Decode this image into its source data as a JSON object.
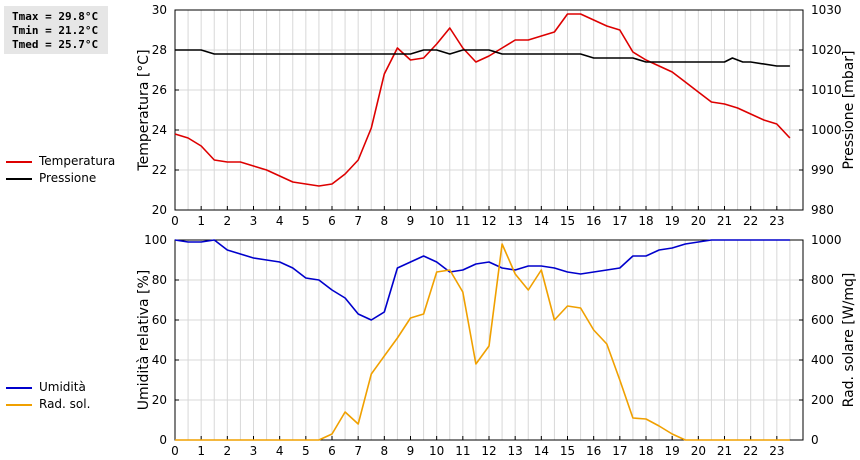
{
  "stats": {
    "tmax": "Tmax = 29.8°C",
    "tmin": "Tmin = 21.2°C",
    "tmed": "Tmed = 25.7°C"
  },
  "chart_data": [
    {
      "type": "line",
      "x_ticks": [
        "0",
        "1",
        "2",
        "3",
        "4",
        "5",
        "6",
        "7",
        "8",
        "9",
        "10",
        "11",
        "12",
        "13",
        "14",
        "15",
        "16",
        "17",
        "18",
        "19",
        "20",
        "21",
        "22",
        "23"
      ],
      "xlim": [
        0,
        24
      ],
      "ylabel": "Temperatura [°C]",
      "ylim": [
        20,
        30
      ],
      "y_ticks": [
        20,
        22,
        24,
        26,
        28,
        30
      ],
      "y2label": "Pressione [mbar]",
      "y2lim": [
        980,
        1030
      ],
      "y2_ticks": [
        980,
        990,
        1000,
        1010,
        1020,
        1030
      ],
      "grid": true,
      "legend_position": "left",
      "series": [
        {
          "name": "Temperatura",
          "color": "#dd0000",
          "axis": "left",
          "x": [
            0,
            0.5,
            1,
            1.5,
            2,
            2.5,
            3,
            3.5,
            4,
            4.5,
            5,
            5.5,
            6,
            6.5,
            7,
            7.5,
            8,
            8.5,
            9,
            9.5,
            10,
            10.5,
            11,
            11.5,
            12,
            12.5,
            13,
            13.5,
            14,
            14.5,
            15,
            15.5,
            16,
            16.5,
            17,
            17.5,
            18,
            18.5,
            19,
            19.5,
            20,
            20.5,
            21,
            21.5,
            22,
            22.5,
            23,
            23.5
          ],
          "values": [
            23.8,
            23.6,
            23.2,
            22.5,
            22.4,
            22.4,
            22.2,
            22.0,
            21.7,
            21.4,
            21.3,
            21.2,
            21.3,
            21.8,
            22.5,
            24.1,
            26.8,
            28.1,
            27.5,
            27.6,
            28.3,
            29.1,
            28.1,
            27.4,
            27.7,
            28.1,
            28.5,
            28.5,
            28.7,
            28.9,
            29.8,
            29.8,
            29.5,
            29.2,
            29.0,
            27.9,
            27.5,
            27.2,
            26.9,
            26.4,
            25.9,
            25.4,
            25.3,
            25.1,
            24.8,
            24.5,
            24.3,
            23.6
          ]
        },
        {
          "name": "Pressione",
          "color": "#000000",
          "axis": "right",
          "x": [
            0,
            1,
            1.5,
            2,
            3,
            4,
            5,
            6,
            7,
            8,
            9,
            9.5,
            10,
            10.5,
            11,
            12,
            12.5,
            13,
            14,
            15,
            15.5,
            16,
            16.5,
            17,
            17.5,
            18,
            19,
            20,
            21,
            21.3,
            21.7,
            22,
            23,
            23.5
          ],
          "values": [
            1020,
            1020,
            1019,
            1019,
            1019,
            1019,
            1019,
            1019,
            1019,
            1019,
            1019,
            1020,
            1020,
            1019,
            1020,
            1020,
            1019,
            1019,
            1019,
            1019,
            1019,
            1018,
            1018,
            1018,
            1018,
            1017,
            1017,
            1017,
            1017,
            1018,
            1017,
            1017,
            1016,
            1016
          ]
        }
      ]
    },
    {
      "type": "line",
      "x_ticks": [
        "0",
        "1",
        "2",
        "3",
        "4",
        "5",
        "6",
        "7",
        "8",
        "9",
        "10",
        "11",
        "12",
        "13",
        "14",
        "15",
        "16",
        "17",
        "18",
        "19",
        "20",
        "21",
        "22",
        "23"
      ],
      "xlim": [
        0,
        24
      ],
      "ylabel": "Umidità relativa [%]",
      "ylim": [
        0,
        100
      ],
      "y_ticks": [
        0,
        20,
        40,
        60,
        80,
        100
      ],
      "y2label": "Rad. solare [W/mq]",
      "y2lim": [
        0,
        1000
      ],
      "y2_ticks": [
        0,
        200,
        400,
        600,
        800,
        1000
      ],
      "grid": true,
      "legend_position": "left",
      "series": [
        {
          "name": "Umidità",
          "color": "#0000cc",
          "axis": "left",
          "x": [
            0,
            0.5,
            1,
            1.5,
            2,
            2.5,
            3,
            3.5,
            4,
            4.5,
            5,
            5.5,
            6,
            6.5,
            7,
            7.5,
            8,
            8.5,
            9,
            9.5,
            10,
            10.5,
            11,
            11.5,
            12,
            12.5,
            13,
            13.5,
            14,
            14.5,
            15,
            15.5,
            16,
            16.5,
            17,
            17.5,
            18,
            18.5,
            19,
            19.5,
            20,
            20.5,
            21,
            21.5,
            22,
            22.5,
            23,
            23.5
          ],
          "values": [
            100,
            99,
            99,
            100,
            95,
            93,
            91,
            90,
            89,
            86,
            81,
            80,
            75,
            71,
            63,
            60,
            64,
            86,
            89,
            92,
            89,
            84,
            85,
            88,
            89,
            86,
            85,
            87,
            87,
            86,
            84,
            83,
            84,
            85,
            86,
            92,
            92,
            95,
            96,
            98,
            99,
            100,
            100,
            100,
            100,
            100,
            100,
            100
          ]
        },
        {
          "name": "Rad. sol.",
          "color": "#f0a000",
          "axis": "right",
          "x": [
            0,
            0.5,
            1,
            1.5,
            2,
            2.5,
            3,
            3.5,
            4,
            4.5,
            5,
            5.5,
            6,
            6.5,
            7,
            7.5,
            8,
            8.5,
            9,
            9.5,
            10,
            10.5,
            11,
            11.5,
            12,
            12.5,
            13,
            13.5,
            14,
            14.5,
            15,
            15.5,
            16,
            16.5,
            17,
            17.5,
            18,
            18.5,
            19,
            19.5,
            20,
            20.5,
            21,
            21.5,
            22,
            22.5,
            23,
            23.5
          ],
          "values": [
            0,
            0,
            0,
            0,
            0,
            0,
            0,
            0,
            0,
            0,
            0,
            0,
            30,
            140,
            80,
            330,
            420,
            510,
            610,
            630,
            840,
            850,
            740,
            380,
            470,
            980,
            830,
            750,
            850,
            600,
            670,
            660,
            550,
            480,
            300,
            110,
            105,
            70,
            30,
            0,
            0,
            0,
            0,
            0,
            0,
            0,
            0,
            0
          ]
        }
      ]
    }
  ]
}
